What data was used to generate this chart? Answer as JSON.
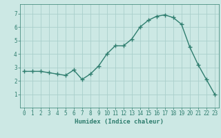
{
  "x": [
    0,
    1,
    2,
    3,
    4,
    5,
    6,
    7,
    8,
    9,
    10,
    11,
    12,
    13,
    14,
    15,
    16,
    17,
    18,
    19,
    20,
    21,
    22,
    23
  ],
  "y": [
    2.7,
    2.7,
    2.7,
    2.6,
    2.5,
    2.4,
    2.8,
    2.1,
    2.5,
    3.1,
    4.0,
    4.6,
    4.6,
    5.1,
    6.0,
    6.5,
    6.8,
    6.9,
    6.7,
    6.2,
    4.5,
    3.2,
    2.1,
    1.0
  ],
  "line_color": "#2e7d6e",
  "marker": "+",
  "marker_size": 4,
  "bg_color": "#cce8e4",
  "grid_color": "#aacfcb",
  "xlabel": "Humidex (Indice chaleur)",
  "xlim": [
    -0.5,
    23.5
  ],
  "ylim": [
    0.0,
    7.7
  ],
  "yticks": [
    1,
    2,
    3,
    4,
    5,
    6,
    7
  ],
  "xticks": [
    0,
    1,
    2,
    3,
    4,
    5,
    6,
    7,
    8,
    9,
    10,
    11,
    12,
    13,
    14,
    15,
    16,
    17,
    18,
    19,
    20,
    21,
    22,
    23
  ],
  "tick_color": "#2e7d6e",
  "label_fontsize": 6.5,
  "tick_fontsize": 5.5,
  "line_width": 1.0
}
